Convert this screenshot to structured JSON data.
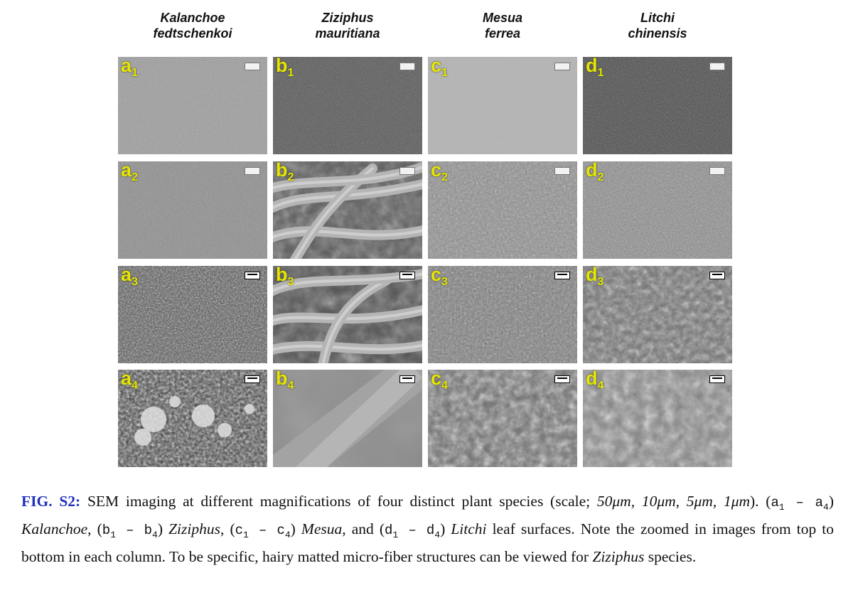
{
  "columns": [
    {
      "line1": "Kalanchoe",
      "line2": "fedtschenkoi"
    },
    {
      "line1": "Ziziphus",
      "line2": "mauritiana"
    },
    {
      "line1": "Mesua",
      "line2": "ferrea"
    },
    {
      "line1": "Litchi",
      "line2": "chinensis"
    }
  ],
  "panels": [
    [
      "a",
      "1"
    ],
    [
      "b",
      "1"
    ],
    [
      "c",
      "1"
    ],
    [
      "d",
      "1"
    ],
    [
      "a",
      "2"
    ],
    [
      "b",
      "2"
    ],
    [
      "c",
      "2"
    ],
    [
      "d",
      "2"
    ],
    [
      "a",
      "3"
    ],
    [
      "b",
      "3"
    ],
    [
      "c",
      "3"
    ],
    [
      "d",
      "3"
    ],
    [
      "a",
      "4"
    ],
    [
      "b",
      "4"
    ],
    [
      "c",
      "4"
    ],
    [
      "d",
      "4"
    ]
  ],
  "caption": {
    "fig_label": "FIG. S2:",
    "text_1": " SEM imaging at different magnifications of four distinct plant species (scale; ",
    "scales": "50μm, 10μm, 5μm, 1μm",
    "text_2": "). (",
    "range_a": "a1 – a4",
    "species_a": "Kalanchoe",
    "range_b": "b1 – b4",
    "species_b": "Ziziphus",
    "range_c": "c1 – c4",
    "species_c": "Mesua",
    "range_d": "d1 – d4",
    "species_d": "Litchi",
    "text_3": " leaf surfaces. Note the zoomed in images from top to bottom in each column. To be specific, hairy matted micro-fiber structures can be viewed for ",
    "species_end": "Ziziphus",
    "text_4": " species."
  }
}
